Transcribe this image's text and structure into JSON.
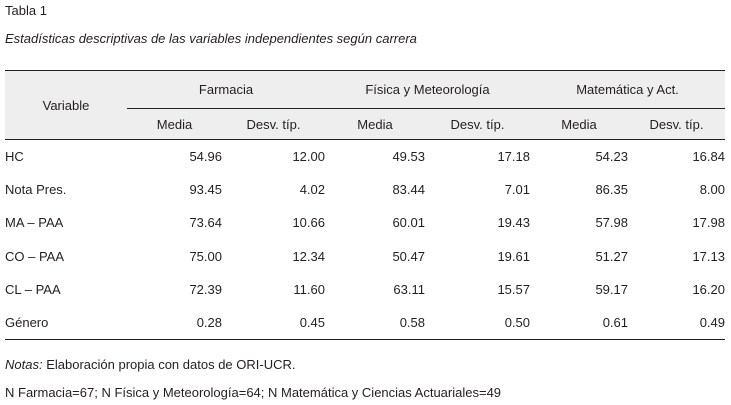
{
  "table_label": "Tabla 1",
  "caption": "Estadísticas descriptivas de las variables independientes según carrera",
  "header": {
    "variable": "Variable",
    "groups": [
      "Farmacia",
      "Física y Meteorología",
      "Matemática y Act."
    ],
    "subcols": [
      "Media",
      "Desv. típ."
    ]
  },
  "rows": [
    {
      "label": "HC",
      "values": [
        "54.96",
        "12.00",
        "49.53",
        "17.18",
        "54.23",
        "16.84"
      ]
    },
    {
      "label": "Nota Pres.",
      "values": [
        "93.45",
        "4.02",
        "83.44",
        "7.01",
        "86.35",
        "8.00"
      ]
    },
    {
      "label": "MA – PAA",
      "values": [
        "73.64",
        "10.66",
        "60.01",
        "19.43",
        "57.98",
        "17.98"
      ]
    },
    {
      "label": "CO – PAA",
      "values": [
        "75.00",
        "12.34",
        "50.47",
        "19.61",
        "51.27",
        "17.13"
      ]
    },
    {
      "label": "CL – PAA",
      "values": [
        "72.39",
        "11.60",
        "63.11",
        "15.57",
        "59.17",
        "16.20"
      ]
    },
    {
      "label": "Género",
      "values": [
        "0.28",
        "0.45",
        "0.58",
        "0.50",
        "0.61",
        "0.49"
      ]
    }
  ],
  "notes": {
    "prefix": "Notas:",
    "text": " Elaboración propia con datos de ORI-UCR.",
    "n_line": "N Farmacia=67; N Física y Meteorología=64; N Matemática y Ciencias Actuariales=49"
  }
}
